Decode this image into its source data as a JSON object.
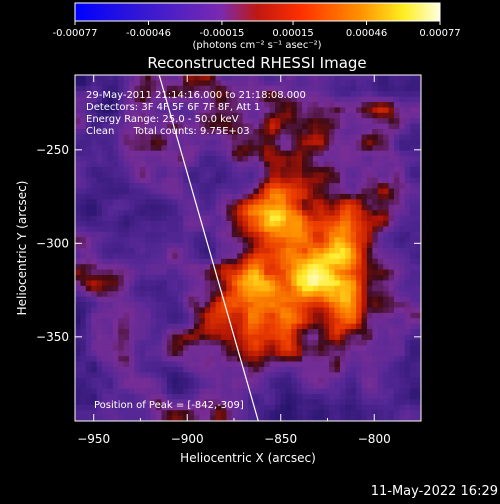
{
  "colorbar": {
    "tick_labels": [
      "-0.00077",
      "-0.00046",
      "-0.00015",
      "0.00015",
      "0.00046",
      "0.00077"
    ],
    "tick_values": [
      -0.00077,
      -0.00046,
      -0.00015,
      0.00015,
      0.00046,
      0.00077
    ],
    "range": [
      -0.00077,
      0.00077
    ],
    "unit_label": "(photons cm⁻² s⁻¹ asec⁻²)",
    "colormap": "blue-purple-red-yellow-white"
  },
  "chart_data": {
    "type": "heatmap",
    "title": "Reconstructed RHESSI Image",
    "xlabel": "Heliocentric X (arcsec)",
    "ylabel": "Heliocentric Y (arcsec)",
    "xlim": [
      -960,
      -775
    ],
    "ylim": [
      -395,
      -210
    ],
    "x_ticks": [
      -950,
      -900,
      -850,
      -800
    ],
    "x_tick_labels": [
      "−950",
      "−900",
      "−850",
      "−800"
    ],
    "y_ticks": [
      -250,
      -300,
      -350
    ],
    "y_tick_labels": [
      "−250",
      "−300",
      "−350"
    ],
    "annotations": [
      "29-May-2011 21:14:16.000 to 21:18:08.000",
      "Detectors: 3F 4F 5F 6F 7F 8F, Att 1",
      "Energy Range: 25.0 - 50.0 keV",
      "Clean      Total counts: 9.75E+03"
    ],
    "peak_label": "Position of Peak = [-842,-309]",
    "peak": [
      -842,
      -309
    ],
    "limb_line": [
      [
        -915,
        -210
      ],
      [
        -862,
        -395
      ]
    ],
    "grid": false
  },
  "timestamp": "11-May-2022 16:29"
}
